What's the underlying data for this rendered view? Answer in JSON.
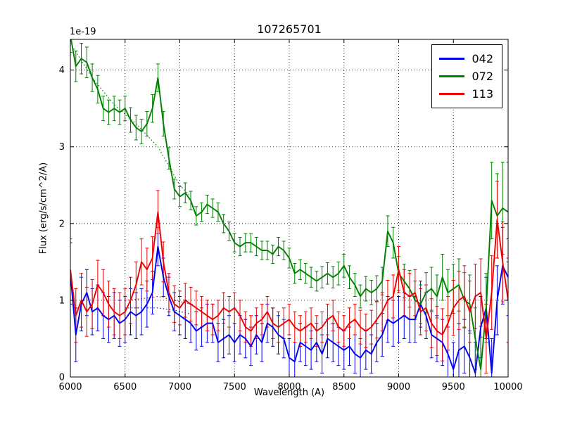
{
  "figure": {
    "title": "107265701",
    "xlabel": "Wavelength (A)",
    "ylabel": "Flux (erg/s/cm^2/A)",
    "offset_label": "1e-19"
  },
  "chart_data": {
    "type": "line",
    "title": "107265701",
    "xlabel": "Wavelength (A)",
    "ylabel": "Flux (erg/s/cm^2/A)",
    "y_offset_label": "1e-19",
    "xlim": [
      6000,
      10000
    ],
    "ylim": [
      0,
      4.4
    ],
    "xticks": [
      6000,
      6500,
      7000,
      7500,
      8000,
      8500,
      9000,
      9500,
      10000
    ],
    "yticks": [
      0,
      1,
      2,
      3,
      4
    ],
    "grid": true,
    "grid_style": "dotted",
    "legend_position": "upper right",
    "x": [
      6000,
      6050,
      6100,
      6150,
      6200,
      6250,
      6300,
      6350,
      6400,
      6450,
      6500,
      6550,
      6600,
      6650,
      6700,
      6750,
      6800,
      6850,
      6900,
      6950,
      7000,
      7050,
      7100,
      7150,
      7200,
      7250,
      7300,
      7350,
      7400,
      7450,
      7500,
      7550,
      7600,
      7650,
      7700,
      7750,
      7800,
      7850,
      7900,
      7950,
      8000,
      8050,
      8100,
      8150,
      8200,
      8250,
      8300,
      8350,
      8400,
      8450,
      8500,
      8550,
      8600,
      8650,
      8700,
      8750,
      8800,
      8850,
      8900,
      8950,
      9000,
      9050,
      9100,
      9150,
      9200,
      9250,
      9300,
      9350,
      9400,
      9450,
      9500,
      9550,
      9600,
      9650,
      9700,
      9750,
      9800,
      9850,
      9900,
      9950,
      10000
    ],
    "series": [
      {
        "name": "042",
        "color": "#0000ee",
        "values": [
          1.35,
          0.55,
          0.95,
          1.1,
          0.85,
          0.9,
          0.8,
          0.75,
          0.8,
          0.7,
          0.75,
          0.85,
          0.8,
          0.85,
          0.95,
          1.1,
          1.7,
          1.3,
          1.05,
          0.85,
          0.8,
          0.75,
          0.7,
          0.6,
          0.65,
          0.7,
          0.7,
          0.45,
          0.5,
          0.55,
          0.45,
          0.55,
          0.5,
          0.4,
          0.55,
          0.45,
          0.7,
          0.65,
          0.55,
          0.5,
          0.25,
          0.2,
          0.45,
          0.4,
          0.35,
          0.45,
          0.3,
          0.5,
          0.45,
          0.4,
          0.35,
          0.4,
          0.3,
          0.25,
          0.35,
          0.3,
          0.45,
          0.55,
          0.75,
          0.7,
          0.75,
          0.8,
          0.75,
          0.75,
          0.95,
          0.8,
          0.55,
          0.5,
          0.45,
          0.3,
          0.1,
          0.35,
          0.4,
          0.25,
          0.05,
          0.65,
          0.9,
          0.05,
          1.0,
          1.45,
          1.3
        ],
        "yerr": [
          0.4,
          0.35,
          0.35,
          0.3,
          0.3,
          0.3,
          0.3,
          0.3,
          0.3,
          0.3,
          0.3,
          0.3,
          0.3,
          0.3,
          0.3,
          0.28,
          0.25,
          0.25,
          0.25,
          0.25,
          0.25,
          0.25,
          0.25,
          0.25,
          0.25,
          0.25,
          0.25,
          0.25,
          0.25,
          0.25,
          0.25,
          0.25,
          0.25,
          0.25,
          0.25,
          0.25,
          0.25,
          0.25,
          0.25,
          0.25,
          0.25,
          0.25,
          0.25,
          0.25,
          0.25,
          0.25,
          0.25,
          0.25,
          0.25,
          0.25,
          0.25,
          0.25,
          0.25,
          0.25,
          0.25,
          0.25,
          0.25,
          0.28,
          0.3,
          0.3,
          0.3,
          0.3,
          0.3,
          0.3,
          0.3,
          0.3,
          0.3,
          0.3,
          0.3,
          0.35,
          0.35,
          0.35,
          0.35,
          0.35,
          0.4,
          0.4,
          0.4,
          0.45,
          0.45,
          0.5,
          0.5
        ]
      },
      {
        "name": "072",
        "color": "#008000",
        "values": [
          4.45,
          4.05,
          4.15,
          4.1,
          3.9,
          3.75,
          3.5,
          3.45,
          3.5,
          3.45,
          3.5,
          3.35,
          3.25,
          3.2,
          3.3,
          3.5,
          3.9,
          3.3,
          2.85,
          2.45,
          2.35,
          2.4,
          2.3,
          2.1,
          2.15,
          2.25,
          2.2,
          2.15,
          2.0,
          1.9,
          1.75,
          1.7,
          1.75,
          1.75,
          1.7,
          1.65,
          1.65,
          1.6,
          1.7,
          1.65,
          1.55,
          1.35,
          1.4,
          1.35,
          1.3,
          1.25,
          1.3,
          1.35,
          1.3,
          1.35,
          1.45,
          1.3,
          1.2,
          1.05,
          1.15,
          1.1,
          1.15,
          1.25,
          1.9,
          1.75,
          1.35,
          1.25,
          1.15,
          1.0,
          0.95,
          1.1,
          1.15,
          1.05,
          1.3,
          1.1,
          1.15,
          1.2,
          1.0,
          0.95,
          0.5,
          0.1,
          0.9,
          2.3,
          2.1,
          2.2,
          2.15
        ],
        "yerr": [
          0.22,
          0.2,
          0.2,
          0.2,
          0.18,
          0.18,
          0.16,
          0.16,
          0.16,
          0.16,
          0.16,
          0.16,
          0.16,
          0.16,
          0.16,
          0.18,
          0.18,
          0.16,
          0.14,
          0.13,
          0.13,
          0.13,
          0.12,
          0.12,
          0.12,
          0.12,
          0.12,
          0.12,
          0.12,
          0.12,
          0.12,
          0.12,
          0.12,
          0.12,
          0.12,
          0.12,
          0.12,
          0.12,
          0.12,
          0.12,
          0.13,
          0.13,
          0.13,
          0.13,
          0.13,
          0.13,
          0.14,
          0.14,
          0.14,
          0.15,
          0.15,
          0.15,
          0.15,
          0.15,
          0.16,
          0.16,
          0.17,
          0.18,
          0.2,
          0.2,
          0.22,
          0.22,
          0.24,
          0.25,
          0.25,
          0.26,
          0.28,
          0.28,
          0.3,
          0.3,
          0.32,
          0.34,
          0.36,
          0.38,
          0.4,
          0.42,
          0.45,
          0.5,
          0.55,
          0.6,
          0.65
        ]
      },
      {
        "name": "113",
        "color": "#ee0000",
        "values": [
          1.4,
          0.8,
          1.0,
          0.85,
          0.95,
          1.2,
          1.1,
          0.95,
          0.85,
          0.8,
          0.85,
          1.0,
          1.2,
          1.5,
          1.4,
          1.55,
          2.15,
          1.5,
          1.1,
          0.95,
          0.9,
          1.0,
          0.95,
          0.9,
          0.85,
          0.8,
          0.75,
          0.8,
          0.9,
          0.85,
          0.9,
          0.8,
          0.65,
          0.6,
          0.7,
          0.75,
          0.85,
          0.7,
          0.65,
          0.7,
          0.75,
          0.65,
          0.6,
          0.65,
          0.7,
          0.6,
          0.65,
          0.75,
          0.8,
          0.65,
          0.6,
          0.7,
          0.75,
          0.65,
          0.6,
          0.65,
          0.75,
          0.85,
          1.0,
          1.05,
          1.4,
          1.1,
          1.05,
          1.1,
          0.85,
          0.9,
          0.7,
          0.6,
          0.55,
          0.7,
          0.9,
          1.0,
          1.05,
          0.85,
          1.05,
          1.1,
          0.5,
          1.1,
          2.05,
          1.5,
          1.0
        ],
        "yerr": [
          0.4,
          0.35,
          0.35,
          0.32,
          0.32,
          0.32,
          0.3,
          0.3,
          0.3,
          0.3,
          0.3,
          0.3,
          0.3,
          0.3,
          0.28,
          0.28,
          0.28,
          0.26,
          0.25,
          0.24,
          0.22,
          0.22,
          0.22,
          0.22,
          0.2,
          0.2,
          0.2,
          0.2,
          0.2,
          0.2,
          0.2,
          0.2,
          0.2,
          0.2,
          0.2,
          0.2,
          0.2,
          0.2,
          0.2,
          0.2,
          0.2,
          0.2,
          0.2,
          0.2,
          0.2,
          0.2,
          0.2,
          0.2,
          0.2,
          0.2,
          0.2,
          0.2,
          0.2,
          0.22,
          0.22,
          0.22,
          0.24,
          0.25,
          0.26,
          0.28,
          0.3,
          0.3,
          0.3,
          0.3,
          0.3,
          0.3,
          0.32,
          0.32,
          0.34,
          0.35,
          0.36,
          0.38,
          0.4,
          0.4,
          0.42,
          0.44,
          0.45,
          0.48,
          0.5,
          0.52,
          0.55
        ]
      }
    ],
    "dotted_fits": [
      {
        "series": "072",
        "color": "#008000",
        "x": [
          6000,
          6200,
          6400,
          6600,
          6700,
          6800,
          6900,
          7000,
          7100
        ],
        "y": [
          4.35,
          3.9,
          3.55,
          3.3,
          3.15,
          3.0,
          2.75,
          2.5,
          2.35
        ]
      },
      {
        "series": "042",
        "color": "#0000ee",
        "x": [
          6500,
          6650,
          6800,
          6950,
          7100
        ],
        "y": [
          0.9,
          0.9,
          0.9,
          0.87,
          0.82
        ]
      },
      {
        "series": "113",
        "color": "#ee0000",
        "x": [
          6500,
          6650,
          6800,
          6950,
          7100
        ],
        "y": [
          1.0,
          1.02,
          1.05,
          1.0,
          0.95
        ]
      }
    ],
    "legend": [
      "042",
      "072",
      "113"
    ]
  }
}
